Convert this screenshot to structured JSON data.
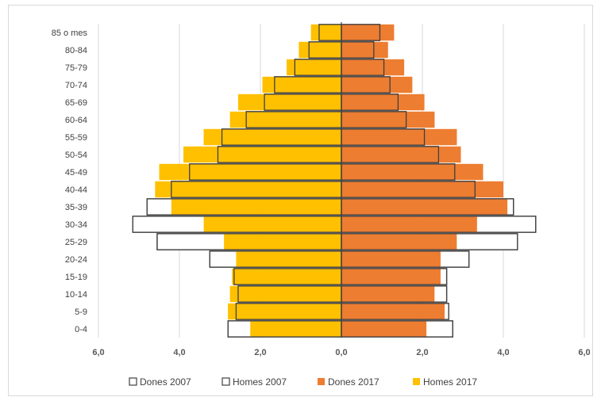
{
  "chart_data": {
    "type": "bar",
    "orientation": "horizontal",
    "subtype": "population-pyramid",
    "title": "",
    "xlabel": "",
    "ylabel": "",
    "categories": [
      "85 o mes",
      "80-84",
      "75-79",
      "70-74",
      "65-69",
      "60-64",
      "55-59",
      "50-54",
      "45-49",
      "40-44",
      "35-39",
      "30-34",
      "25-29",
      "20-24",
      "15-19",
      "10-14",
      "5-9",
      "0-4"
    ],
    "x_ticks": [
      "6,0",
      "4,0",
      "2,0",
      "0,0",
      "2,0",
      "4,0",
      "6,0"
    ],
    "xlim": [
      -6,
      6
    ],
    "grid": true,
    "legend_position": "bottom",
    "series": [
      {
        "name": "Dones 2007",
        "side": "right",
        "style": "outline",
        "values": [
          0.95,
          0.8,
          1.05,
          1.2,
          1.4,
          1.6,
          2.05,
          2.4,
          2.8,
          3.3,
          4.25,
          4.8,
          4.35,
          3.15,
          2.6,
          2.6,
          2.65,
          2.75
        ]
      },
      {
        "name": "Homes 2007",
        "side": "left",
        "style": "outline",
        "values": [
          0.55,
          0.8,
          1.15,
          1.65,
          1.9,
          2.35,
          2.95,
          3.05,
          3.75,
          4.2,
          4.8,
          5.15,
          4.55,
          3.25,
          2.65,
          2.55,
          2.6,
          2.8
        ]
      },
      {
        "name": "Dones 2017",
        "side": "right",
        "style": "filled",
        "values": [
          1.3,
          1.15,
          1.55,
          1.75,
          2.05,
          2.3,
          2.85,
          2.95,
          3.5,
          4.0,
          4.1,
          3.35,
          2.85,
          2.45,
          2.45,
          2.3,
          2.55,
          2.1
        ]
      },
      {
        "name": "Homes 2017",
        "side": "left",
        "style": "filled",
        "values": [
          0.75,
          1.05,
          1.35,
          1.95,
          2.55,
          2.75,
          3.4,
          3.9,
          4.5,
          4.6,
          4.2,
          3.4,
          2.9,
          2.6,
          2.7,
          2.75,
          2.8,
          2.25
        ]
      }
    ],
    "colors": {
      "Dones 2017": "#ED7D31",
      "Homes 2017": "#FFC000",
      "outline": "#404040",
      "grid": "#d9d9d9"
    }
  }
}
